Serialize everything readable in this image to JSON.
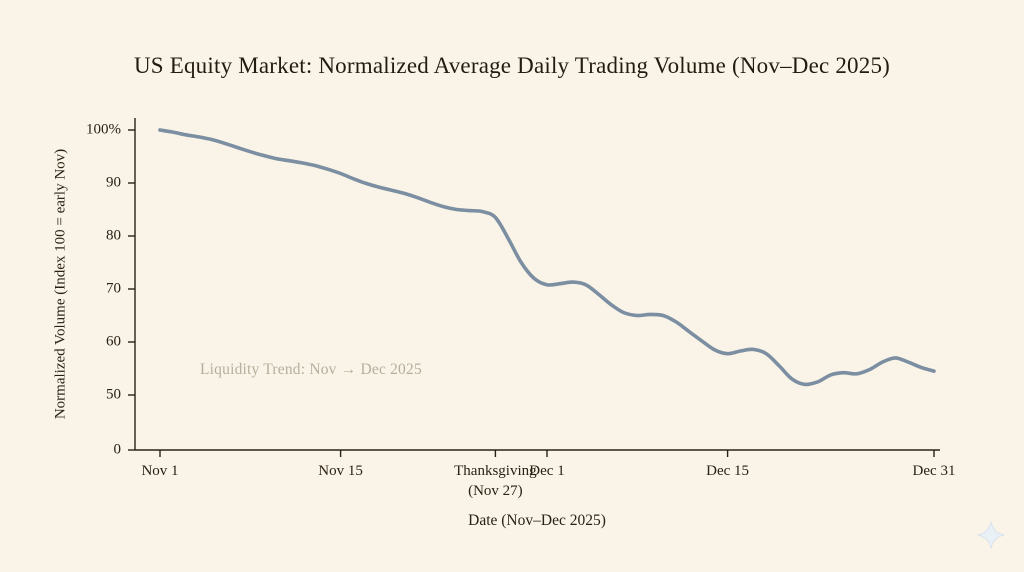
{
  "colors": {
    "background": "#f9f4e7",
    "line": "#7c8ea2",
    "axis": "#2a2114",
    "title_text": "#241b0f",
    "annotation_text": "#b6ae9c",
    "sparkle": "#e9f0f6"
  },
  "icons": {
    "bottom_right": "sparkle-icon"
  },
  "chart_data": {
    "type": "line",
    "title": "US Equity Market: Normalized Average Daily Trading Volume (Nov–Dec 2025)",
    "xlabel": "Date (Nov–Dec 2025)",
    "ylabel": "Normalized Volume (Index 100 = early Nov)",
    "annotation": "Liquidity Trend: Nov → Dec 2025",
    "grid": false,
    "legend": "none",
    "ylim_display": [
      50,
      100
    ],
    "broken_axis_zero": true,
    "y_ticks": [
      {
        "label": "100%",
        "value": 100
      },
      {
        "label": "90",
        "value": 90
      },
      {
        "label": "80",
        "value": 80
      },
      {
        "label": "70",
        "value": 70
      },
      {
        "label": "60",
        "value": 60
      },
      {
        "label": "50",
        "value": 50
      },
      {
        "label": "0",
        "value": 0
      }
    ],
    "x_ticks": [
      {
        "label": "Nov 1",
        "day": 0
      },
      {
        "label": "Nov 15",
        "day": 14
      },
      {
        "label": "Thanksgiving\n(Nov 27)",
        "day": 26
      },
      {
        "label": "Dec 1",
        "day": 30
      },
      {
        "label": "Dec 15",
        "day": 44
      },
      {
        "label": "Dec 31",
        "day": 60
      }
    ],
    "x_unit": "days since Nov 1 2025",
    "series": [
      {
        "name": "Normalized average daily trading volume",
        "values": [
          100,
          99.6,
          99.1,
          98.7,
          98.2,
          97.5,
          96.7,
          95.9,
          95.2,
          94.6,
          94.2,
          93.8,
          93.3,
          92.6,
          91.8,
          90.8,
          89.9,
          89.2,
          88.6,
          88.0,
          87.2,
          86.3,
          85.5,
          85.0,
          84.8,
          84.6,
          83.5,
          79.5,
          75.0,
          72.0,
          70.8,
          71.0,
          71.3,
          70.8,
          69.0,
          67.0,
          65.5,
          65.0,
          65.2,
          65.0,
          63.8,
          62.0,
          60.2,
          58.5,
          57.8,
          58.3,
          58.6,
          57.8,
          55.5,
          53.0,
          52.0,
          52.5,
          53.8,
          54.2,
          54.0,
          54.8,
          56.2,
          57.0,
          56.2,
          55.2,
          54.5
        ]
      }
    ]
  }
}
